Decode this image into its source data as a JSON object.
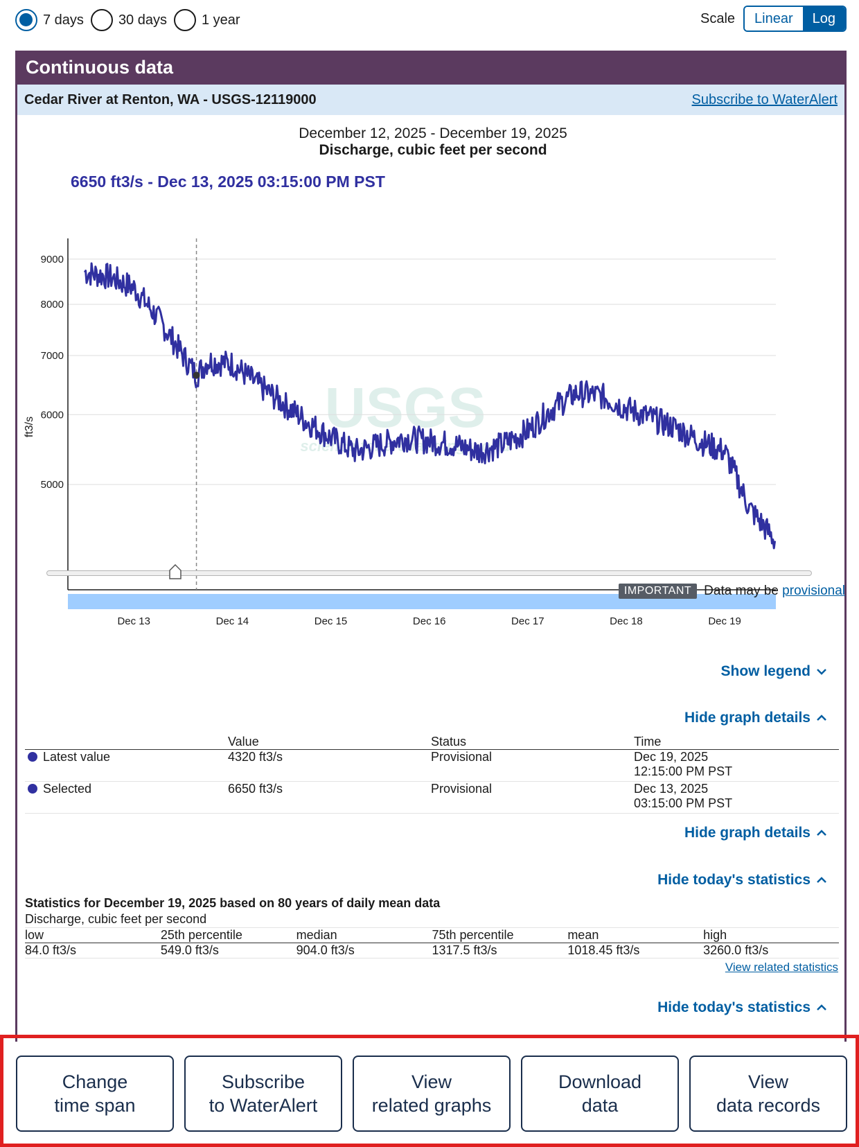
{
  "time_range": {
    "options": [
      "7 days",
      "30 days",
      "1 year"
    ],
    "selected": "7 days"
  },
  "scale": {
    "label": "Scale",
    "options": [
      "Linear",
      "Log"
    ],
    "selected": "Log"
  },
  "card": {
    "title": "Continuous data",
    "site_name": "Cedar River at Renton, WA - USGS-12119000",
    "subscribe_link": "Subscribe to WaterAlert"
  },
  "graph": {
    "date_range": "December 12, 2025 - December 19, 2025",
    "parameter": "Discharge, cubic feet per second",
    "tooltip": "6650 ft3/s - Dec 13, 2025 03:15:00 PM PST",
    "watermark": "science for a changing world",
    "watermark_logo": "USGS",
    "line_color": "#3030a0"
  },
  "chart_data": {
    "type": "line",
    "title": "Discharge, cubic feet per second",
    "subtitle": "December 12, 2025 - December 19, 2025",
    "ylabel": "ft3/s",
    "xlabel": "",
    "y_scale": "log",
    "yticks": [
      5000,
      6000,
      7000,
      8000,
      9000
    ],
    "xticks": [
      "Dec 13",
      "Dec 14",
      "Dec 15",
      "Dec 16",
      "Dec 17",
      "Dec 18",
      "Dec 19"
    ],
    "ylim": [
      3800,
      9500
    ],
    "grid": true,
    "series": [
      {
        "name": "Discharge",
        "x": [
          "Dec 12 12:00",
          "Dec 12 18:00",
          "Dec 13 00:00",
          "Dec 13 06:00",
          "Dec 13 12:00",
          "Dec 13 15:15",
          "Dec 13 18:00",
          "Dec 14 00:00",
          "Dec 14 06:00",
          "Dec 14 12:00",
          "Dec 14 18:00",
          "Dec 15 00:00",
          "Dec 15 06:00",
          "Dec 15 12:00",
          "Dec 15 18:00",
          "Dec 16 00:00",
          "Dec 16 06:00",
          "Dec 16 12:00",
          "Dec 16 18:00",
          "Dec 17 00:00",
          "Dec 17 06:00",
          "Dec 17 12:00",
          "Dec 17 18:00",
          "Dec 18 00:00",
          "Dec 18 06:00",
          "Dec 18 12:00",
          "Dec 18 18:00",
          "Dec 19 00:00",
          "Dec 19 06:00",
          "Dec 19 12:15"
        ],
        "values": [
          8700,
          8600,
          8350,
          7700,
          7000,
          6650,
          6900,
          6850,
          6500,
          6200,
          5900,
          5650,
          5450,
          5550,
          5650,
          5600,
          5550,
          5450,
          5550,
          5750,
          6100,
          6350,
          6300,
          6100,
          5950,
          5800,
          5600,
          5450,
          4700,
          4320
        ]
      }
    ],
    "selected_point": {
      "x": "Dec 13 15:15",
      "y": 6650
    }
  },
  "notice": {
    "badge": "IMPORTANT",
    "text": "Data may be",
    "link": "provisional"
  },
  "toggles": {
    "show_legend": "Show legend",
    "hide_graph_details": "Hide graph details",
    "hide_todays_statistics": "Hide today's statistics"
  },
  "graph_details": {
    "headers": [
      "",
      "Value",
      "Status",
      "Time"
    ],
    "rows": [
      {
        "label": "Latest value",
        "value": "4320 ft3/s",
        "status": "Provisional",
        "date": "Dec 19, 2025",
        "time": "12:15:00 PM PST"
      },
      {
        "label": "Selected",
        "value": "6650 ft3/s",
        "status": "Provisional",
        "date": "Dec 13, 2025",
        "time": "03:15:00 PM PST"
      }
    ]
  },
  "statistics": {
    "title": "Statistics for December 19, 2025 based on 80 years of daily mean data",
    "subtitle": "Discharge, cubic feet per second",
    "headers": [
      "low",
      "25th percentile",
      "median",
      "75th percentile",
      "mean",
      "high"
    ],
    "values": [
      "84.0 ft3/s",
      "549.0 ft3/s",
      "904.0 ft3/s",
      "1317.5 ft3/s",
      "1018.45 ft3/s",
      "3260.0 ft3/s"
    ],
    "related_link": "View related statistics"
  },
  "actions": [
    "Change\ntime span",
    "Subscribe\nto WaterAlert",
    "View\nrelated graphs",
    "Download\ndata",
    "View\ndata records"
  ]
}
